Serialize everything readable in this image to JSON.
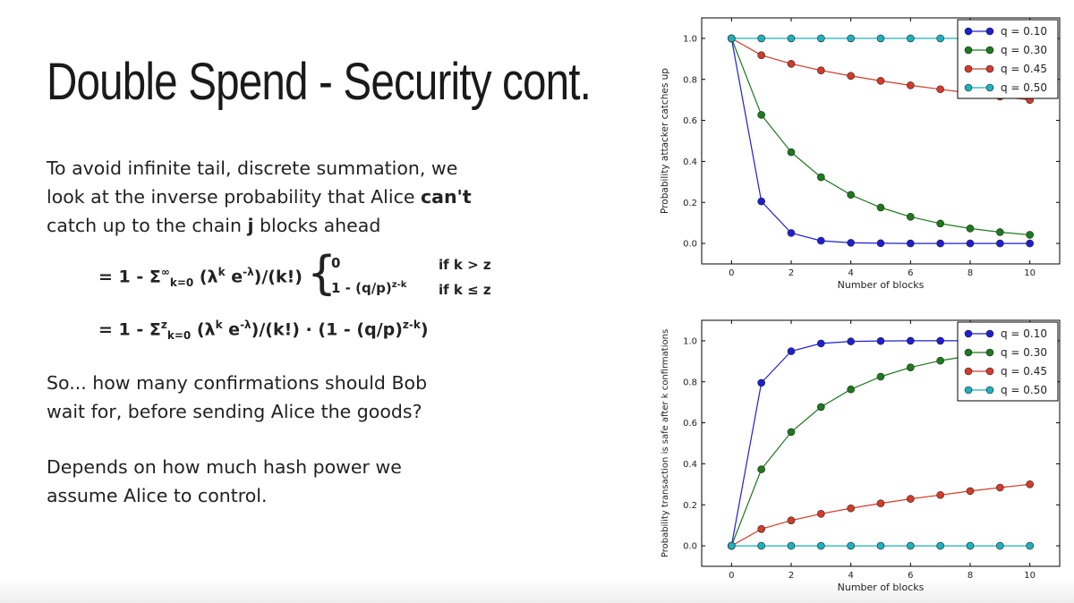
{
  "slide": {
    "title": "Double Spend - Security cont.",
    "para1": {
      "line1": "To avoid infinite tail, discrete summation, we",
      "line2_pre": "look at the inverse probability that Alice ",
      "line2_bold": "can't",
      "line3_pre": "catch up to the chain ",
      "line3_bold": "j",
      "line3_post": " blocks ahead"
    },
    "formula1": {
      "lhs": "= 1 - Σ",
      "sup": "∞",
      "sub": "k=0",
      "mid": "(λ",
      "k": "k",
      "e": " e",
      "neg": "-λ",
      "tail": ")/(k!)",
      "brace": "{",
      "case1_val": "0",
      "case1_cond": "if   k > z",
      "case2_val": "1 - (q/p)",
      "case2_exp": "z-k",
      "case2_cond": "if   k ≤ z"
    },
    "formula2": {
      "lhs": "= 1 - Σ",
      "sup": "z",
      "sub": "k=0",
      "mid": "(λ",
      "k": "k",
      "e": " e",
      "neg": "-λ",
      "tail": ")/(k!) · (1 - (q/p)",
      "exp": "z-k",
      "end": ")"
    },
    "para2": {
      "line1": "So... how many confirmations should Bob",
      "line2": "wait for, before sending Alice the goods?"
    },
    "para3": {
      "line1": "Depends on how much hash power we",
      "line2": "assume Alice to control."
    }
  },
  "chart_data": [
    {
      "type": "line",
      "xlabel": "Number of blocks",
      "ylabel": "Probability attacker catches up",
      "xlim": [
        -1,
        11
      ],
      "ylim": [
        -0.1,
        1.1
      ],
      "xticks": [
        0,
        2,
        4,
        6,
        8,
        10
      ],
      "yticks": [
        0.0,
        0.2,
        0.4,
        0.6,
        0.8,
        1.0
      ],
      "legend_position": "top-right",
      "x": [
        0,
        1,
        2,
        3,
        4,
        5,
        6,
        7,
        8,
        9,
        10
      ],
      "series": [
        {
          "name": "q = 0.10",
          "color": "#1f1fd1",
          "values": [
            1.0,
            0.205,
            0.051,
            0.013,
            0.003,
            0.001,
            0.0,
            0.0,
            0.0,
            0.0,
            0.0
          ]
        },
        {
          "name": "q = 0.30",
          "color": "#1d7a1d",
          "values": [
            1.0,
            0.627,
            0.445,
            0.323,
            0.237,
            0.175,
            0.13,
            0.097,
            0.073,
            0.055,
            0.042
          ]
        },
        {
          "name": "q = 0.45",
          "color": "#d33b2b",
          "values": [
            1.0,
            0.918,
            0.876,
            0.844,
            0.817,
            0.793,
            0.771,
            0.752,
            0.733,
            0.716,
            0.7
          ]
        },
        {
          "name": "q = 0.50",
          "color": "#1fb0bd",
          "values": [
            1.0,
            1.0,
            1.0,
            1.0,
            1.0,
            1.0,
            1.0,
            1.0,
            1.0,
            1.0,
            1.0
          ]
        }
      ]
    },
    {
      "type": "line",
      "xlabel": "Number of blocks",
      "ylabel": "Probability transaction is safe after k confirmations",
      "xlim": [
        -1,
        11
      ],
      "ylim": [
        -0.1,
        1.1
      ],
      "xticks": [
        0,
        2,
        4,
        6,
        8,
        10
      ],
      "yticks": [
        0.0,
        0.2,
        0.4,
        0.6,
        0.8,
        1.0
      ],
      "legend_position": "top-right",
      "x": [
        0,
        1,
        2,
        3,
        4,
        5,
        6,
        7,
        8,
        9,
        10
      ],
      "series": [
        {
          "name": "q = 0.10",
          "color": "#1f1fd1",
          "values": [
            0.0,
            0.795,
            0.949,
            0.987,
            0.997,
            0.999,
            1.0,
            1.0,
            1.0,
            1.0,
            1.0
          ]
        },
        {
          "name": "q = 0.30",
          "color": "#1d7a1d",
          "values": [
            0.0,
            0.373,
            0.555,
            0.677,
            0.763,
            0.825,
            0.87,
            0.903,
            0.927,
            0.945,
            0.958
          ]
        },
        {
          "name": "q = 0.45",
          "color": "#d33b2b",
          "values": [
            0.0,
            0.082,
            0.124,
            0.156,
            0.183,
            0.207,
            0.229,
            0.248,
            0.267,
            0.284,
            0.3
          ]
        },
        {
          "name": "q = 0.50",
          "color": "#1fb0bd",
          "values": [
            0.0,
            0.0,
            0.0,
            0.0,
            0.0,
            0.0,
            0.0,
            0.0,
            0.0,
            0.0,
            0.0
          ]
        }
      ]
    }
  ]
}
